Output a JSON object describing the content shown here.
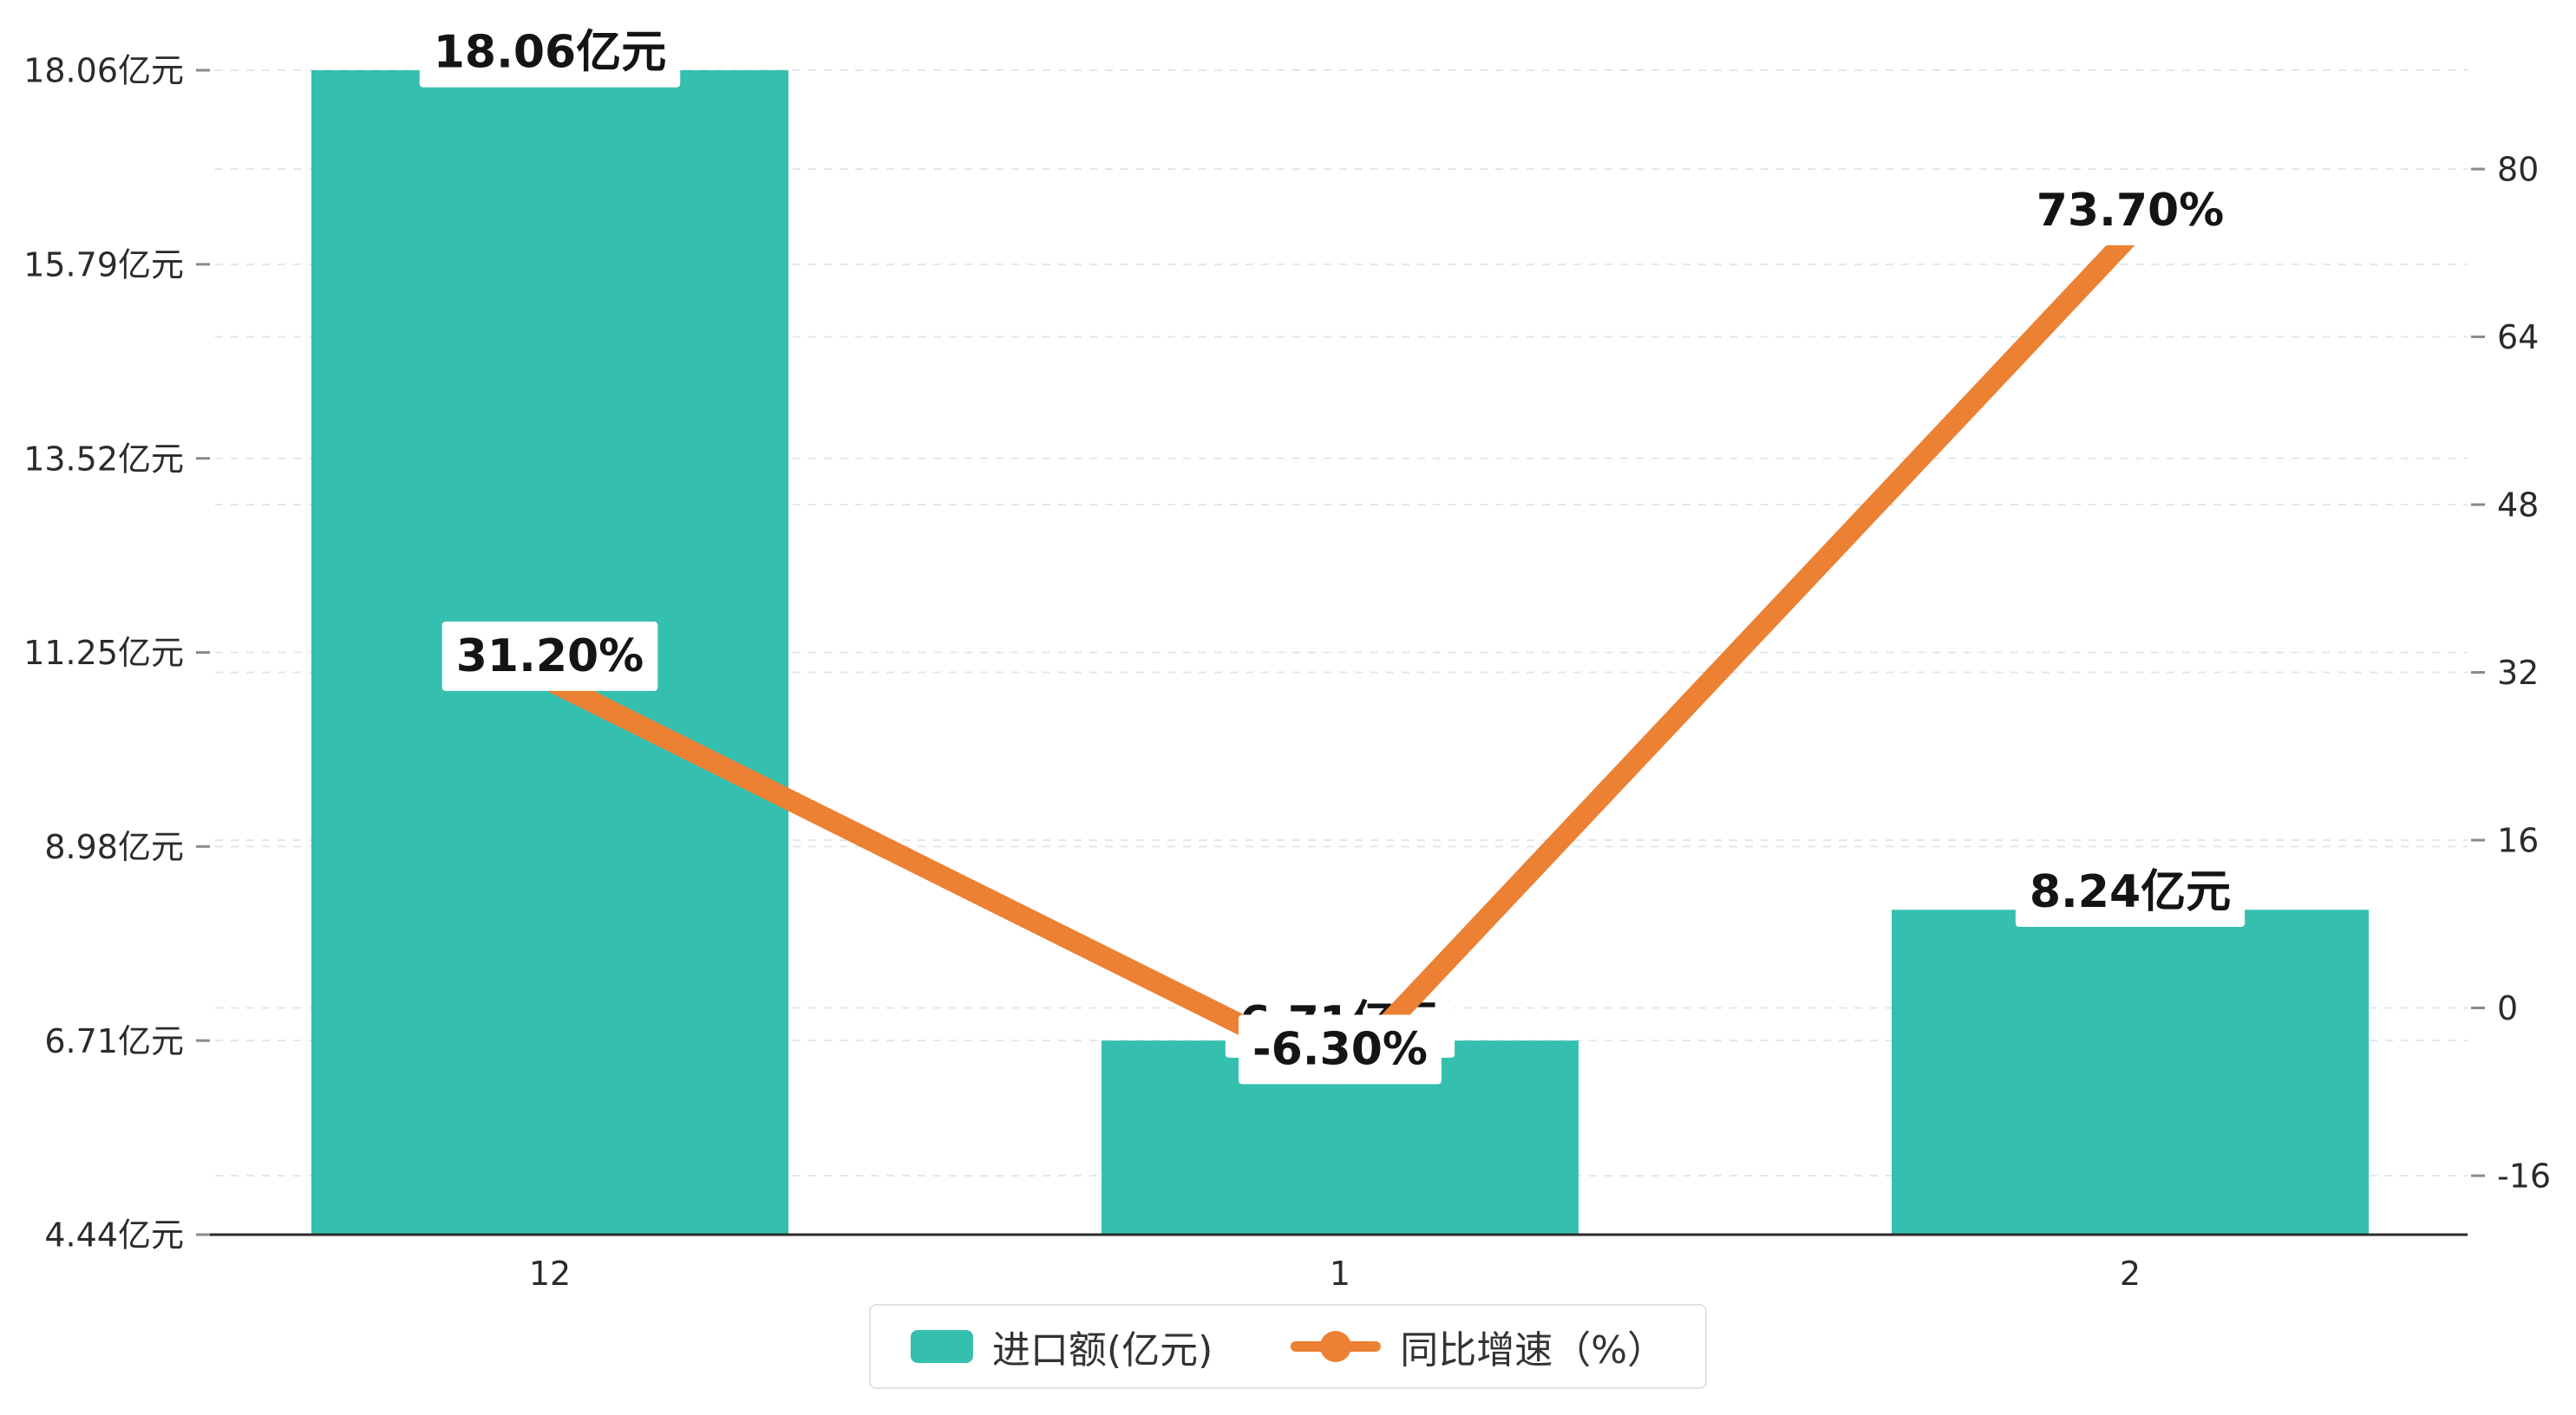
{
  "chart_data": {
    "type": "bar",
    "subtype": "bar-line combo, dual y-axis",
    "title": "",
    "categories": [
      "12",
      "1",
      "2"
    ],
    "series": [
      {
        "name": "进口额(亿元)",
        "type": "bar",
        "axis": "left",
        "values": [
          18.06,
          6.71,
          8.24
        ],
        "labels": [
          "18.06亿元",
          "6.71亿元",
          "8.24亿元"
        ],
        "color": "#35bfae"
      },
      {
        "name": "同比增速（%）",
        "type": "line",
        "axis": "right",
        "values": [
          31.2,
          -6.3,
          73.7
        ],
        "labels": [
          "31.20%",
          "-6.30%",
          "73.70%"
        ],
        "color": "#ec8033"
      }
    ],
    "left_axis": {
      "min": 4.44,
      "max": 18.06,
      "ticks": [
        4.44,
        6.71,
        8.98,
        11.25,
        13.52,
        15.79,
        18.06
      ],
      "tick_labels": [
        "4.44亿元",
        "6.71亿元",
        "8.98亿元",
        "11.25亿元",
        "13.52亿元",
        "15.79亿元",
        "18.06亿元"
      ]
    },
    "right_axis": {
      "min": -16,
      "max": 80,
      "ticks": [
        -16,
        0,
        16,
        32,
        48,
        64,
        80
      ],
      "tick_labels": [
        "-16",
        "0",
        "16",
        "32",
        "48",
        "64",
        "80"
      ]
    },
    "grid": "dashed horizontal gridlines for both axes",
    "legend_position": "bottom-center",
    "background": "#ffffff"
  },
  "legend": {
    "items": [
      {
        "label": "进口额(亿元)",
        "swatch": "bar",
        "color": "#35bfae"
      },
      {
        "label": "同比增速（%）",
        "swatch": "line-dot",
        "color": "#ec8033"
      }
    ]
  }
}
